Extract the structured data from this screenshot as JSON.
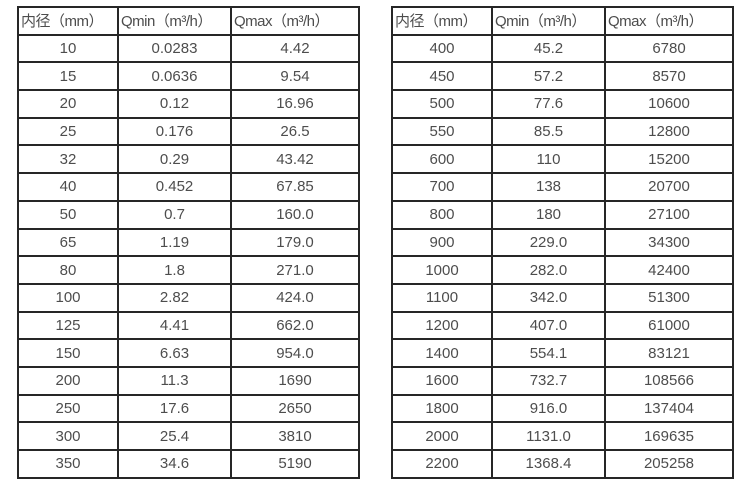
{
  "tables": [
    {
      "headers": [
        "内径（mm）",
        "Qmin（m³/h）",
        "Qmax（m³/h）"
      ],
      "rows": [
        [
          "10",
          "0.0283",
          "4.42"
        ],
        [
          "15",
          "0.0636",
          "9.54"
        ],
        [
          "20",
          "0.12",
          "16.96"
        ],
        [
          "25",
          "0.176",
          "26.5"
        ],
        [
          "32",
          "0.29",
          "43.42"
        ],
        [
          "40",
          "0.452",
          "67.85"
        ],
        [
          "50",
          "0.7",
          "160.0"
        ],
        [
          "65",
          "1.19",
          "179.0"
        ],
        [
          "80",
          "1.8",
          "271.0"
        ],
        [
          "100",
          "2.82",
          "424.0"
        ],
        [
          "125",
          "4.41",
          "662.0"
        ],
        [
          "150",
          "6.63",
          "954.0"
        ],
        [
          "200",
          "11.3",
          "1690"
        ],
        [
          "250",
          "17.6",
          "2650"
        ],
        [
          "300",
          "25.4",
          "3810"
        ],
        [
          "350",
          "34.6",
          "5190"
        ]
      ]
    },
    {
      "headers": [
        "内径（mm）",
        "Qmin（m³/h）",
        "Qmax（m³/h）"
      ],
      "rows": [
        [
          "400",
          "45.2",
          "6780"
        ],
        [
          "450",
          "57.2",
          "8570"
        ],
        [
          "500",
          "77.6",
          "10600"
        ],
        [
          "550",
          "85.5",
          "12800"
        ],
        [
          "600",
          "110",
          "15200"
        ],
        [
          "700",
          "138",
          "20700"
        ],
        [
          "800",
          "180",
          "27100"
        ],
        [
          "900",
          "229.0",
          "34300"
        ],
        [
          "1000",
          "282.0",
          "42400"
        ],
        [
          "1100",
          "342.0",
          "51300"
        ],
        [
          "1200",
          "407.0",
          "61000"
        ],
        [
          "1400",
          "554.1",
          "83121"
        ],
        [
          "1600",
          "732.7",
          "108566"
        ],
        [
          "1800",
          "916.0",
          "137404"
        ],
        [
          "2000",
          "1131.0",
          "169635"
        ],
        [
          "2200",
          "1368.4",
          "205258"
        ]
      ]
    }
  ],
  "colors": {
    "border": "#262626",
    "text": "#4d4d4d",
    "background": "#ffffff"
  }
}
